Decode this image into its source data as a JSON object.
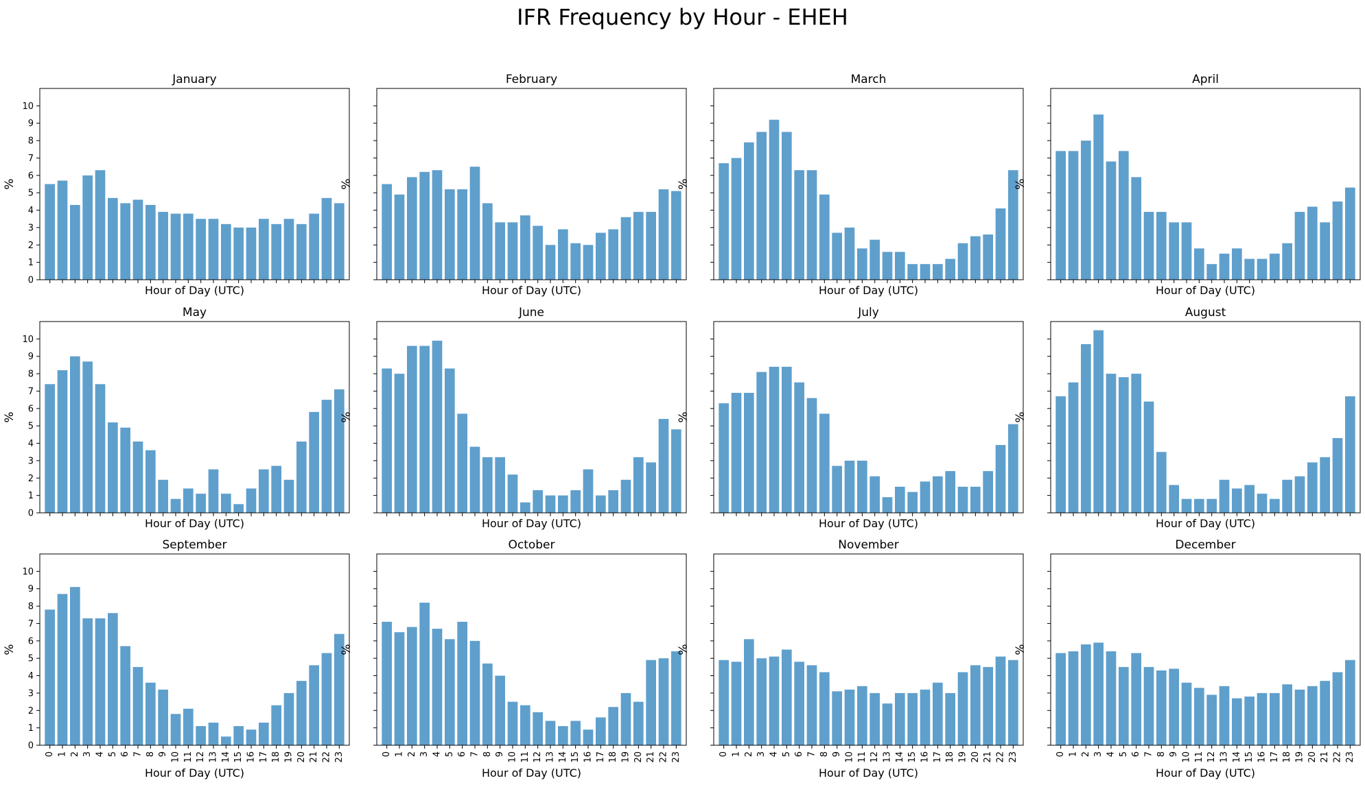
{
  "chart_data": {
    "type": "bar",
    "title": "IFR Frequency by Hour - EHEH",
    "xlabel": "Hour of Day (UTC)",
    "ylabel": "%",
    "ylim": [
      0,
      11
    ],
    "yticks": [
      0,
      1,
      2,
      3,
      4,
      5,
      6,
      7,
      8,
      9,
      10
    ],
    "grid": false,
    "bar_color": "#5f9fcc",
    "categories": [
      "0",
      "1",
      "2",
      "3",
      "4",
      "5",
      "6",
      "7",
      "8",
      "9",
      "10",
      "11",
      "12",
      "13",
      "14",
      "15",
      "16",
      "17",
      "18",
      "19",
      "20",
      "21",
      "22",
      "23"
    ],
    "panels": [
      {
        "name": "January",
        "values": [
          5.5,
          5.7,
          4.3,
          6.0,
          6.3,
          4.7,
          4.4,
          4.6,
          4.3,
          3.9,
          3.8,
          3.8,
          3.5,
          3.5,
          3.2,
          3.0,
          3.0,
          3.5,
          3.2,
          3.5,
          3.2,
          3.8,
          4.7,
          4.4
        ]
      },
      {
        "name": "February",
        "values": [
          5.5,
          4.9,
          5.9,
          6.2,
          6.3,
          5.2,
          5.2,
          6.5,
          4.4,
          3.3,
          3.3,
          3.7,
          3.1,
          2.0,
          2.9,
          2.1,
          2.0,
          2.7,
          2.9,
          3.6,
          3.9,
          3.9,
          5.2,
          5.1
        ]
      },
      {
        "name": "March",
        "values": [
          6.7,
          7.0,
          7.9,
          8.5,
          9.2,
          8.5,
          6.3,
          6.3,
          4.9,
          2.7,
          3.0,
          1.8,
          2.3,
          1.6,
          1.6,
          0.9,
          0.9,
          0.9,
          1.2,
          2.1,
          2.5,
          2.6,
          4.1,
          6.3
        ]
      },
      {
        "name": "April",
        "values": [
          7.4,
          7.4,
          8.0,
          9.5,
          6.8,
          7.4,
          5.9,
          3.9,
          3.9,
          3.3,
          3.3,
          1.8,
          0.9,
          1.5,
          1.8,
          1.2,
          1.2,
          1.5,
          2.1,
          3.9,
          4.2,
          3.3,
          4.5,
          5.3
        ]
      },
      {
        "name": "May",
        "values": [
          7.4,
          8.2,
          9.0,
          8.7,
          7.4,
          5.2,
          4.9,
          4.1,
          3.6,
          1.9,
          0.8,
          1.4,
          1.1,
          2.5,
          1.1,
          0.5,
          1.4,
          2.5,
          2.7,
          1.9,
          4.1,
          5.8,
          6.5,
          7.1
        ]
      },
      {
        "name": "June",
        "values": [
          8.3,
          8.0,
          9.6,
          9.6,
          9.9,
          8.3,
          5.7,
          3.8,
          3.2,
          3.2,
          2.2,
          0.6,
          1.3,
          1.0,
          1.0,
          1.3,
          2.5,
          1.0,
          1.3,
          1.9,
          3.2,
          2.9,
          5.4,
          4.8
        ]
      },
      {
        "name": "July",
        "values": [
          6.3,
          6.9,
          6.9,
          8.1,
          8.4,
          8.4,
          7.5,
          6.6,
          5.7,
          2.7,
          3.0,
          3.0,
          2.1,
          0.9,
          1.5,
          1.2,
          1.8,
          2.1,
          2.4,
          1.5,
          1.5,
          2.4,
          3.9,
          5.1
        ]
      },
      {
        "name": "August",
        "values": [
          6.7,
          7.5,
          9.7,
          10.5,
          8.0,
          7.8,
          8.0,
          6.4,
          3.5,
          1.6,
          0.8,
          0.8,
          0.8,
          1.9,
          1.4,
          1.6,
          1.1,
          0.8,
          1.9,
          2.1,
          2.9,
          3.2,
          4.3,
          6.7
        ]
      },
      {
        "name": "September",
        "values": [
          7.8,
          8.7,
          9.1,
          7.3,
          7.3,
          7.6,
          5.7,
          4.5,
          3.6,
          3.2,
          1.8,
          2.1,
          1.1,
          1.3,
          0.5,
          1.1,
          0.9,
          1.3,
          2.3,
          3.0,
          3.7,
          4.6,
          5.3,
          6.4
        ]
      },
      {
        "name": "October",
        "values": [
          7.1,
          6.5,
          6.8,
          8.2,
          6.7,
          6.1,
          7.1,
          6.0,
          4.7,
          4.0,
          2.5,
          2.3,
          1.9,
          1.4,
          1.1,
          1.4,
          0.9,
          1.6,
          2.2,
          3.0,
          2.5,
          4.9,
          5.0,
          5.4
        ]
      },
      {
        "name": "November",
        "values": [
          4.9,
          4.8,
          6.1,
          5.0,
          5.1,
          5.5,
          4.8,
          4.6,
          4.2,
          3.1,
          3.2,
          3.4,
          3.0,
          2.4,
          3.0,
          3.0,
          3.2,
          3.6,
          3.0,
          4.2,
          4.6,
          4.5,
          5.1,
          4.9
        ]
      },
      {
        "name": "December",
        "values": [
          5.3,
          5.4,
          5.8,
          5.9,
          5.4,
          4.5,
          5.3,
          4.5,
          4.3,
          4.4,
          3.6,
          3.3,
          2.9,
          3.4,
          2.7,
          2.8,
          3.0,
          3.0,
          3.5,
          3.2,
          3.4,
          3.7,
          4.2,
          4.9
        ]
      }
    ]
  }
}
